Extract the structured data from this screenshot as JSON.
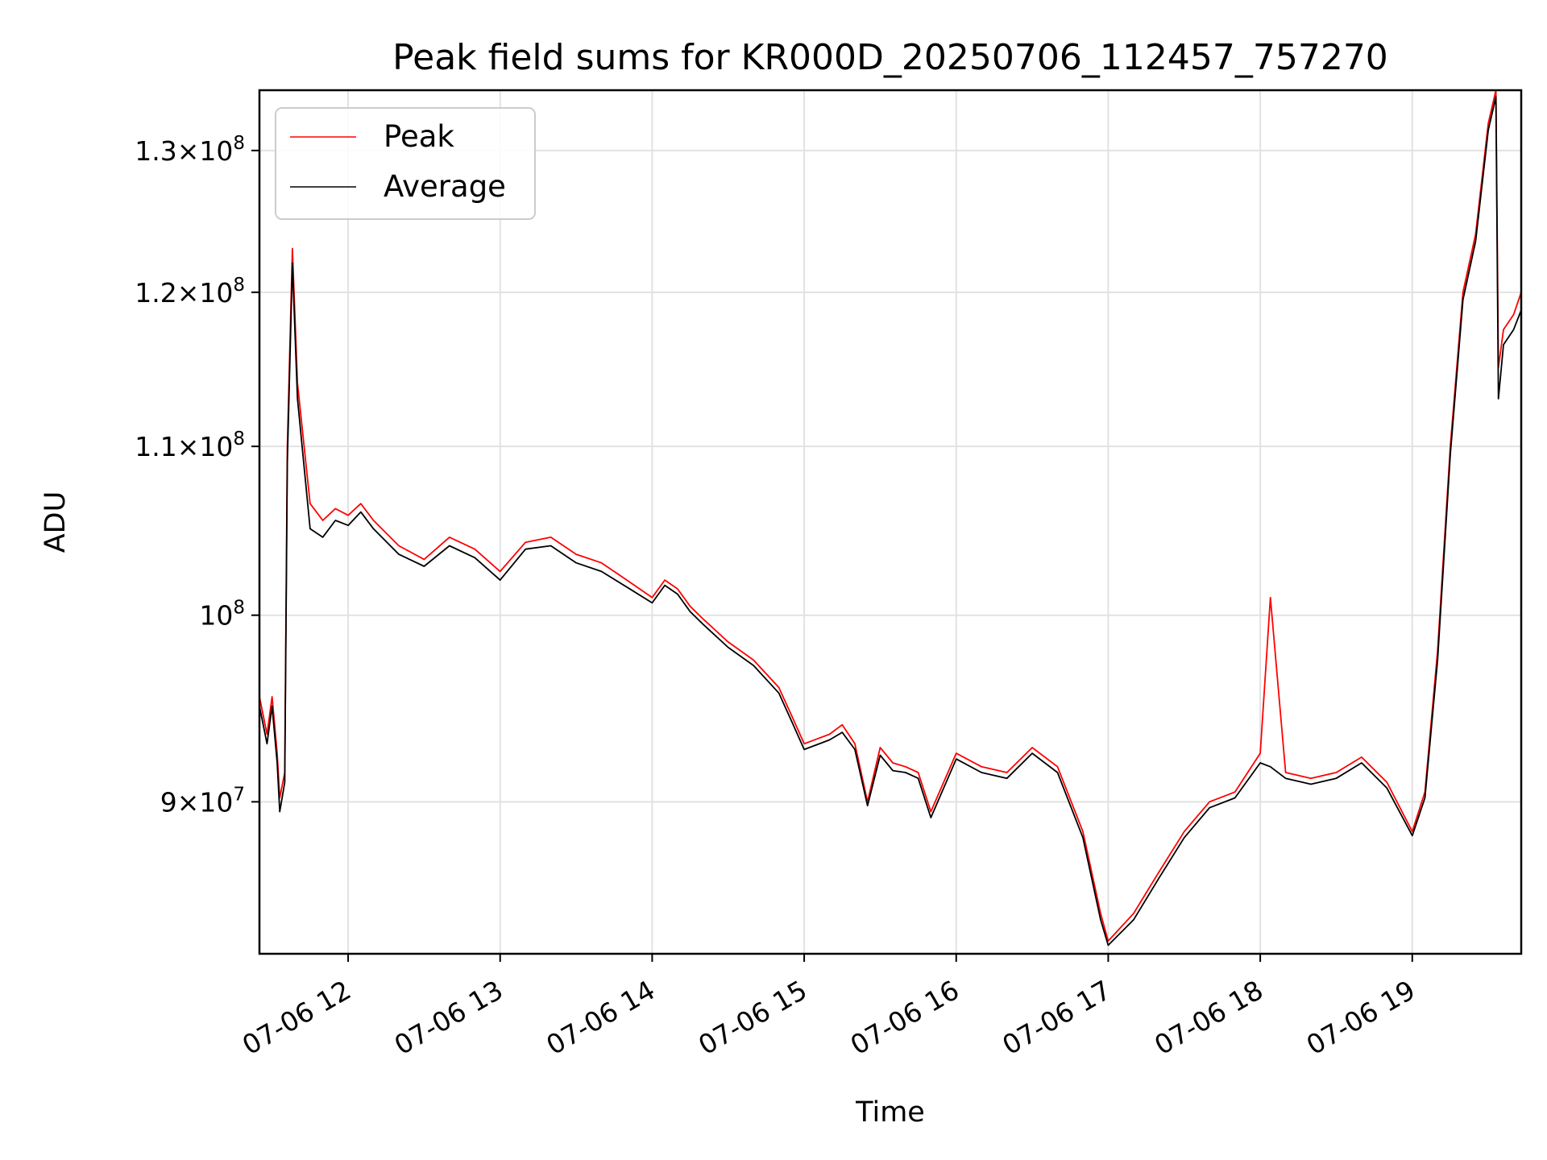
{
  "chart_data": {
    "type": "line",
    "title": "Peak field sums for KR000D_20250706_112457_757270",
    "xlabel": "Time",
    "ylabel": "ADU",
    "y_scale": "log",
    "grid": true,
    "legend_position": "upper-left",
    "xlim": [
      "2025-07-06 11:25",
      "2025-07-06 19:43"
    ],
    "ylim": [
      82600000,
      134500000
    ],
    "x_ticks": [
      "07-06 12",
      "07-06 13",
      "07-06 14",
      "07-06 15",
      "07-06 16",
      "07-06 17",
      "07-06 18",
      "07-06 19"
    ],
    "y_ticks": [
      {
        "value": 90000000,
        "mantissa": "9",
        "exp": "7"
      },
      {
        "value": 100000000,
        "mantissa": "",
        "exp": "8"
      },
      {
        "value": 110000000,
        "mantissa": "1.1",
        "exp": "8"
      },
      {
        "value": 120000000,
        "mantissa": "1.2",
        "exp": "8"
      },
      {
        "value": 130000000,
        "mantissa": "1.3",
        "exp": "8"
      }
    ],
    "x": [
      "11:25",
      "11:28",
      "11:30",
      "11:32",
      "11:33",
      "11:35",
      "11:36",
      "11:38",
      "11:40",
      "11:45",
      "11:50",
      "11:55",
      "12:00",
      "12:05",
      "12:10",
      "12:20",
      "12:30",
      "12:40",
      "12:50",
      "13:00",
      "13:10",
      "13:20",
      "13:30",
      "13:40",
      "13:50",
      "14:00",
      "14:05",
      "14:10",
      "14:15",
      "14:20",
      "14:30",
      "14:40",
      "14:50",
      "14:55",
      "15:00",
      "15:10",
      "15:15",
      "15:20",
      "15:25",
      "15:30",
      "15:35",
      "15:40",
      "15:45",
      "15:50",
      "16:00",
      "16:10",
      "16:20",
      "16:30",
      "16:40",
      "16:50",
      "16:57",
      "17:00",
      "17:10",
      "17:20",
      "17:30",
      "17:40",
      "17:50",
      "18:00",
      "18:04",
      "18:10",
      "18:20",
      "18:30",
      "18:40",
      "18:50",
      "19:00",
      "19:05",
      "19:10",
      "19:15",
      "19:20",
      "19:25",
      "19:30",
      "19:33",
      "19:34",
      "19:36",
      "19:40",
      "19:43"
    ],
    "series": [
      {
        "name": "Peak",
        "color": "#ff0000",
        "values": [
          95500000,
          93500000,
          95500000,
          92500000,
          90200000,
          91500000,
          110000000,
          123000000,
          114000000,
          106500000,
          105500000,
          106200000,
          105800000,
          106500000,
          105500000,
          104000000,
          103200000,
          104500000,
          103800000,
          102500000,
          104200000,
          104500000,
          103500000,
          103000000,
          102000000,
          101000000,
          102000000,
          101500000,
          100500000,
          99800000,
          98500000,
          97500000,
          96000000,
          94500000,
          93000000,
          93500000,
          94000000,
          93000000,
          90000000,
          92800000,
          92000000,
          91800000,
          91500000,
          89500000,
          92500000,
          91800000,
          91500000,
          92800000,
          91800000,
          88500000,
          84500000,
          83200000,
          84500000,
          86500000,
          88500000,
          90000000,
          90500000,
          92500000,
          101000000,
          91500000,
          91200000,
          91500000,
          92300000,
          91000000,
          88500000,
          90500000,
          98000000,
          110000000,
          120000000,
          124000000,
          132000000,
          134500000,
          115000000,
          117500000,
          118500000,
          120000000
        ]
      },
      {
        "name": "Average",
        "color": "#000000",
        "values": [
          95000000,
          93000000,
          95000000,
          92000000,
          89500000,
          91000000,
          109000000,
          122000000,
          113000000,
          105000000,
          104500000,
          105500000,
          105200000,
          106000000,
          105000000,
          103500000,
          102800000,
          104000000,
          103300000,
          102000000,
          103800000,
          104000000,
          103000000,
          102500000,
          101600000,
          100700000,
          101700000,
          101200000,
          100200000,
          99500000,
          98200000,
          97200000,
          95700000,
          94200000,
          92700000,
          93200000,
          93600000,
          92700000,
          89800000,
          92400000,
          91600000,
          91500000,
          91200000,
          89200000,
          92200000,
          91500000,
          91200000,
          92500000,
          91500000,
          88200000,
          84200000,
          83000000,
          84200000,
          86200000,
          88200000,
          89700000,
          90200000,
          92000000,
          91800000,
          91200000,
          90900000,
          91200000,
          92000000,
          90700000,
          88300000,
          90200000,
          97500000,
          109500000,
          119500000,
          123500000,
          131500000,
          134000000,
          113000000,
          116500000,
          117500000,
          118800000
        ]
      }
    ]
  }
}
